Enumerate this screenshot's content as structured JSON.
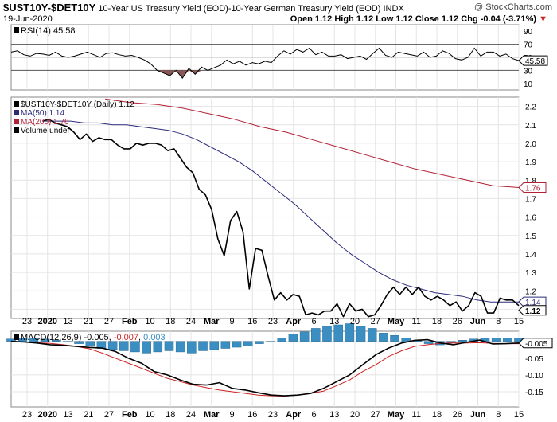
{
  "header": {
    "ticker": "$UST10Y-$DET10Y",
    "description": "10-Year US Treasury Yield (EOD)-10-Year German Treasury Yield (EOD)",
    "exchange": "INDX",
    "watermark": "@ StockCharts.com",
    "date": "19-Jun-2020",
    "ohlc": "Open 1.12  High 1.12  Low 1.12  Close 1.12  Chg -0.04 (-3.71%)"
  },
  "rsi_panel": {
    "label": "RSI(14) 45.58",
    "axis_ticks": [
      "90",
      "70",
      "50",
      "30",
      "10"
    ],
    "last_tag": "45.58"
  },
  "price_panel": {
    "legend": [
      {
        "text": "$UST10Y-$DET10Y (Daily) 1.12",
        "color": "#000000"
      },
      {
        "text": "MA(50) 1.14",
        "color": "#2b2b7a"
      },
      {
        "text": "MA(200) 1.76",
        "color": "#b32035"
      },
      {
        "text": "Volume undef",
        "color": "#000000"
      }
    ],
    "axis_ticks": [
      "2.2",
      "2.1",
      "2.0",
      "1.9",
      "1.8",
      "1.7",
      "1.6",
      "1.5",
      "1.4",
      "1.3",
      "1.2",
      "1.1"
    ],
    "tags": [
      "1.76",
      "1.14",
      "1.12"
    ]
  },
  "macd_panel": {
    "label_prefix": "MACD(12,26,9)",
    "macd_value": "-0.005",
    "signal_value": "-0.007",
    "hist_value": "0.003",
    "axis_ticks": [
      "0.00",
      "-0.05",
      "-0.10",
      "-0.15"
    ],
    "last_tag": "-0.005"
  },
  "x_axis_labels": [
    "23",
    "2020",
    "13",
    "21",
    "27",
    "Feb",
    "10",
    "18",
    "24",
    "Mar",
    "9",
    "16",
    "23",
    "Apr",
    "6",
    "13",
    "20",
    "27",
    "May",
    "11",
    "18",
    "26",
    "Jun",
    "8",
    "15"
  ],
  "colors": {
    "price": "#000000",
    "ma50": "#2b2b7a",
    "ma200": "#b32035",
    "rsi": "#000000",
    "macd": "#000000",
    "signal": "#cc2222",
    "histogram": "#3a8ec2",
    "rsi_fill": "#8b5656"
  },
  "chart_data": [
    {
      "type": "line",
      "panel": "rsi",
      "ylim": [
        0,
        100
      ],
      "reference_lines": [
        70,
        50,
        30
      ],
      "series": [
        {
          "name": "RSI(14)",
          "values": [
            58,
            60,
            54,
            52,
            56,
            55,
            53,
            58,
            52,
            50,
            52,
            55,
            58,
            54,
            50,
            56,
            57,
            54,
            52,
            53,
            50,
            46,
            40,
            30,
            26,
            22,
            30,
            18,
            33,
            24,
            35,
            30,
            34,
            38,
            46,
            40,
            44,
            38,
            42,
            40,
            44,
            42,
            52,
            60,
            55,
            62,
            58,
            64,
            54,
            58,
            52,
            52,
            54,
            48,
            50,
            52,
            47,
            56,
            64,
            53,
            50,
            58,
            56,
            54,
            52,
            58,
            50,
            52,
            60,
            56,
            48,
            46,
            50,
            64,
            52,
            58,
            58,
            52,
            55,
            48,
            45
          ]
        }
      ]
    },
    {
      "type": "line",
      "panel": "price",
      "ylim": [
        1.05,
        2.25
      ],
      "series": [
        {
          "name": "$UST10Y-$DET10Y (Daily)",
          "values": [
            2.12,
            2.13,
            2.11,
            2.1,
            2.09,
            2.06,
            2.02,
            2.05,
            2.01,
            2.03,
            2.02,
            2.02,
            1.99,
            1.97,
            1.97,
            2.0,
            1.99,
            2.0,
            2.0,
            1.99,
            1.96,
            1.97,
            1.92,
            1.87,
            1.84,
            1.75,
            1.72,
            1.64,
            1.48,
            1.39,
            1.58,
            1.63,
            1.52,
            1.21,
            1.43,
            1.42,
            1.28,
            1.15,
            1.19,
            1.15,
            1.18,
            1.17,
            1.07,
            1.08,
            1.07,
            1.09,
            1.09,
            1.13,
            1.06,
            1.13,
            1.09,
            1.1,
            1.06,
            1.07,
            1.12,
            1.18,
            1.22,
            1.18,
            1.22,
            1.18,
            1.22,
            1.17,
            1.15,
            1.17,
            1.15,
            1.12,
            1.14,
            1.09,
            1.12,
            1.19,
            1.17,
            1.08,
            1.08,
            1.16,
            1.15,
            1.15,
            1.12
          ]
        },
        {
          "name": "MA(50)",
          "values": [
            2.12,
            2.12,
            2.12,
            2.11,
            2.11,
            2.1,
            2.1,
            2.09,
            2.08,
            2.07,
            2.05,
            2.02,
            1.98,
            1.94,
            1.9,
            1.85,
            1.79,
            1.73,
            1.67,
            1.6,
            1.53,
            1.46,
            1.4,
            1.35,
            1.3,
            1.26,
            1.23,
            1.21,
            1.19,
            1.18,
            1.17,
            1.15,
            1.14,
            1.14,
            1.14
          ]
        },
        {
          "name": "MA(200)",
          "values": [
            2.24,
            2.22,
            2.21,
            2.19,
            2.16,
            2.13,
            2.09,
            2.06,
            2.02,
            1.98,
            1.94,
            1.9,
            1.86,
            1.83,
            1.8,
            1.77,
            1.76
          ]
        }
      ]
    },
    {
      "type": "line",
      "panel": "macd",
      "ylim": [
        -0.195,
        0.03
      ],
      "series": [
        {
          "name": "MACD",
          "values": [
            0.0,
            -0.002,
            -0.005,
            -0.01,
            -0.012,
            -0.015,
            -0.018,
            -0.02,
            -0.03,
            -0.05,
            -0.065,
            -0.09,
            -0.1,
            -0.115,
            -0.128,
            -0.13,
            -0.123,
            -0.14,
            -0.145,
            -0.153,
            -0.16,
            -0.162,
            -0.16,
            -0.155,
            -0.14,
            -0.12,
            -0.1,
            -0.07,
            -0.04,
            -0.02,
            -0.005,
            0.003,
            0.005,
            -0.005,
            -0.01,
            -0.003,
            0.004,
            -0.008,
            -0.007,
            -0.005
          ]
        },
        {
          "name": "Signal",
          "values": [
            0.0,
            -0.002,
            -0.004,
            -0.006,
            -0.01,
            -0.015,
            -0.022,
            -0.035,
            -0.05,
            -0.065,
            -0.08,
            -0.095,
            -0.11,
            -0.12,
            -0.13,
            -0.138,
            -0.145,
            -0.15,
            -0.155,
            -0.16,
            -0.162,
            -0.163,
            -0.16,
            -0.155,
            -0.148,
            -0.132,
            -0.115,
            -0.09,
            -0.07,
            -0.045,
            -0.028,
            -0.015,
            -0.01,
            -0.006,
            -0.005,
            -0.005,
            -0.004,
            -0.006,
            -0.007,
            -0.007
          ]
        },
        {
          "name": "Histogram",
          "values": [
            0.002,
            0.003,
            0.003,
            0.002,
            0.001,
            0.0,
            -0.002,
            -0.004,
            -0.006,
            -0.007,
            -0.008,
            -0.009,
            -0.01,
            -0.009,
            -0.008,
            -0.009,
            -0.01,
            -0.008,
            -0.007,
            -0.006,
            -0.005,
            -0.004,
            -0.002,
            0.0,
            0.003,
            0.006,
            0.008,
            0.011,
            0.013,
            0.014,
            0.015,
            0.013,
            0.011,
            0.007,
            0.005,
            0.003,
            0.001,
            -0.002,
            -0.003,
            -0.001,
            0.001,
            0.002,
            0.003,
            0.003,
            0.003,
            0.003
          ]
        }
      ]
    }
  ]
}
